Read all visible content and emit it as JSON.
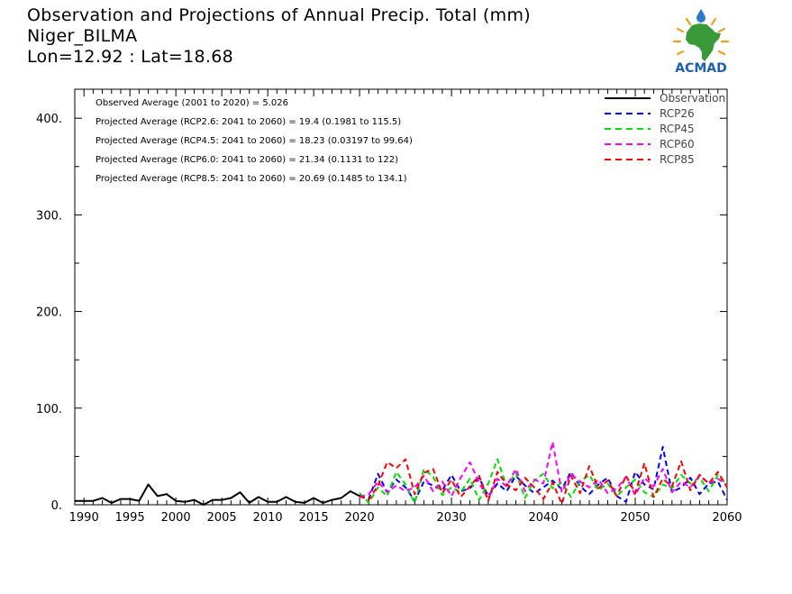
{
  "titles": {
    "line1": "Observation and Projections of Annual Precip. Total (mm)",
    "line2": "Niger_BILMA",
    "line3": "Lon=12.92 : Lat=18.68"
  },
  "logo": {
    "text": "ACMAD"
  },
  "annotations": [
    "Observed Average (2001 to 2020) = 5.026",
    "Projected Average (RCP2.6: 2041 to 2060) = 19.4 (0.1981 to 115.5)",
    "Projected Average (RCP4.5: 2041 to 2060) = 18.23 (0.03197 to 99.64)",
    "Projected Average (RCP6.0: 2041 to 2060) = 21.34 (0.1131 to 122)",
    "Projected Average (RCP8.5: 2041 to 2060) = 20.69 (0.1485 to 134.1)"
  ],
  "chart_data": {
    "type": "line",
    "xlim": [
      1989,
      2060
    ],
    "ylim": [
      0,
      430
    ],
    "x_ticks": [
      1990,
      1995,
      2000,
      2005,
      2010,
      2015,
      2020,
      2030,
      2040,
      2050,
      2060
    ],
    "y_ticks": [
      0,
      100,
      200,
      300,
      400
    ],
    "y_tick_labels": [
      "0.",
      "100.",
      "200.",
      "300.",
      "400."
    ],
    "legend_position": "top-right",
    "series": [
      {
        "name": "Observation",
        "color": "#000000",
        "dash": "solid",
        "x": [
          1989,
          1990,
          1991,
          1992,
          1993,
          1994,
          1995,
          1996,
          1997,
          1998,
          1999,
          2000,
          2001,
          2002,
          2003,
          2004,
          2005,
          2006,
          2007,
          2008,
          2009,
          2010,
          2011,
          2012,
          2013,
          2014,
          2015,
          2016,
          2017,
          2018,
          2019,
          2020
        ],
        "values": [
          4,
          4,
          4,
          7,
          2,
          6,
          6,
          4,
          21,
          9,
          11,
          4,
          3,
          5,
          0,
          5,
          5,
          7,
          13,
          2,
          8,
          3,
          3,
          8,
          3,
          2,
          7,
          2,
          5,
          7,
          14,
          9
        ]
      },
      {
        "name": "RCP26",
        "color": "#0000ff",
        "dash": "dashed",
        "x": [
          2020,
          2021,
          2022,
          2023,
          2024,
          2025,
          2026,
          2027,
          2028,
          2029,
          2030,
          2031,
          2032,
          2033,
          2034,
          2035,
          2036,
          2037,
          2038,
          2039,
          2040,
          2041,
          2042,
          2043,
          2044,
          2045,
          2046,
          2047,
          2048,
          2049,
          2050,
          2051,
          2052,
          2053,
          2054,
          2055,
          2056,
          2057,
          2058,
          2059,
          2060
        ],
        "values": [
          10,
          6,
          32,
          13,
          26,
          18,
          4,
          24,
          20,
          15,
          31,
          14,
          17,
          28,
          9,
          22,
          14,
          30,
          20,
          12,
          18,
          25,
          16,
          34,
          19,
          11,
          21,
          28,
          9,
          3,
          34,
          21,
          16,
          60,
          13,
          18,
          28,
          11,
          22,
          24,
          5
        ]
      },
      {
        "name": "RCP45",
        "color": "#00e000",
        "dash": "dashed",
        "x": [
          2020,
          2021,
          2022,
          2023,
          2024,
          2025,
          2026,
          2027,
          2028,
          2029,
          2030,
          2031,
          2032,
          2033,
          2034,
          2035,
          2036,
          2037,
          2038,
          2039,
          2040,
          2041,
          2042,
          2043,
          2044,
          2045,
          2046,
          2047,
          2048,
          2049,
          2050,
          2051,
          2052,
          2053,
          2054,
          2055,
          2056,
          2057,
          2058,
          2059,
          2060
        ],
        "values": [
          12,
          2,
          18,
          9,
          34,
          21,
          2,
          37,
          29,
          10,
          18,
          13,
          27,
          5,
          22,
          47,
          19,
          33,
          7,
          25,
          32,
          17,
          23,
          8,
          24,
          31,
          15,
          22,
          9,
          18,
          26,
          13,
          8,
          21,
          17,
          31,
          22,
          28,
          14,
          31,
          20
        ]
      },
      {
        "name": "RCP60",
        "color": "#ff00ff",
        "dash": "dashed",
        "x": [
          2020,
          2021,
          2022,
          2023,
          2024,
          2025,
          2026,
          2027,
          2028,
          2029,
          2030,
          2031,
          2032,
          2033,
          2034,
          2035,
          2036,
          2037,
          2038,
          2039,
          2040,
          2041,
          2042,
          2043,
          2044,
          2045,
          2046,
          2047,
          2048,
          2049,
          2050,
          2051,
          2052,
          2053,
          2054,
          2055,
          2056,
          2057,
          2058,
          2059,
          2060
        ],
        "values": [
          8,
          11,
          24,
          13,
          20,
          14,
          18,
          30,
          14,
          24,
          9,
          28,
          44,
          23,
          6,
          27,
          19,
          37,
          14,
          26,
          22,
          65,
          13,
          32,
          24,
          18,
          26,
          12,
          17,
          29,
          10,
          28,
          19,
          37,
          13,
          24,
          18,
          30,
          22,
          27,
          20
        ]
      },
      {
        "name": "RCP85",
        "color": "#ff0000",
        "dash": "dashed",
        "x": [
          2020,
          2021,
          2022,
          2023,
          2024,
          2025,
          2026,
          2027,
          2028,
          2029,
          2030,
          2031,
          2032,
          2033,
          2034,
          2035,
          2036,
          2037,
          2038,
          2039,
          2040,
          2041,
          2042,
          2043,
          2044,
          2045,
          2046,
          2047,
          2048,
          2049,
          2050,
          2051,
          2052,
          2053,
          2054,
          2055,
          2056,
          2057,
          2058,
          2059,
          2060
        ],
        "values": [
          9,
          5,
          20,
          44,
          38,
          47,
          11,
          33,
          37,
          12,
          26,
          8,
          19,
          30,
          4,
          34,
          21,
          15,
          28,
          18,
          6,
          23,
          1,
          30,
          12,
          40,
          17,
          25,
          9,
          30,
          12,
          43,
          8,
          27,
          19,
          45,
          15,
          31,
          22,
          34,
          18
        ]
      }
    ]
  }
}
